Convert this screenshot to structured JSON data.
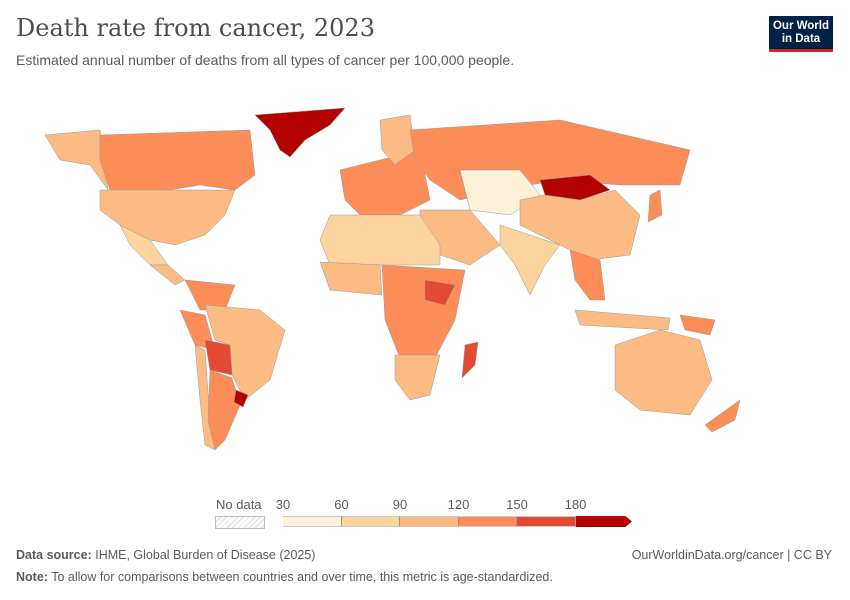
{
  "header": {
    "title": "Death rate from cancer, 2023",
    "subtitle": "Estimated annual number of deaths from all types of cancer per 100,000 people.",
    "logo": "Our World in Data"
  },
  "legend": {
    "no_data_label": "No data",
    "ticks": [
      "30",
      "60",
      "90",
      "120",
      "150",
      "180"
    ],
    "bins": [
      {
        "from": 30,
        "to": 60,
        "color": "#fef0d9"
      },
      {
        "from": 60,
        "to": 90,
        "color": "#fdd49e"
      },
      {
        "from": 90,
        "to": 120,
        "color": "#fdbb84"
      },
      {
        "from": 120,
        "to": 150,
        "color": "#fc8d59"
      },
      {
        "from": 150,
        "to": 180,
        "color": "#e34a33"
      },
      {
        "from": 180,
        "to": null,
        "color": "#b30000"
      }
    ]
  },
  "footer": {
    "source_label": "Data source:",
    "source": "IHME, Global Burden of Disease (2025)",
    "note_label": "Note:",
    "note": "To allow for comparisons between countries and over time, this metric is age-standardized.",
    "link": "OurWorldinData.org/cancer | CC BY"
  }
}
